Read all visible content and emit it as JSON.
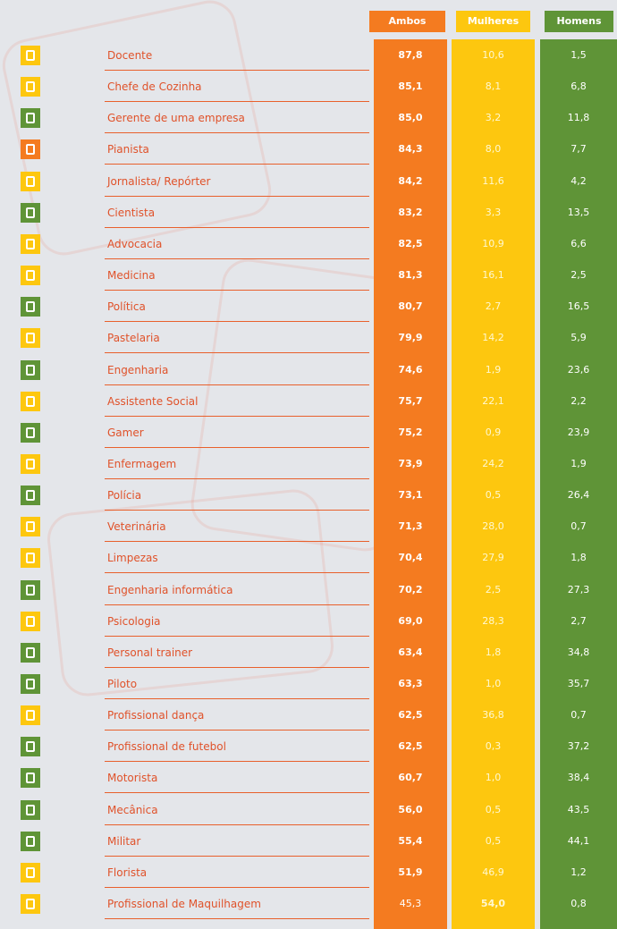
{
  "header": {
    "ambos": "Ambos",
    "mulheres": "Mulheres",
    "homens": "Homens"
  },
  "rows": [
    [
      "Docente",
      "87,8",
      "10,6",
      "1,5"
    ],
    [
      "Chefe de Cozinha",
      "85,1",
      "8,1",
      "6,8"
    ],
    [
      "Gerente de uma empresa",
      "85,0",
      "3,2",
      "11,8"
    ],
    [
      "Pianista",
      "84,3",
      "8,0",
      "7,7"
    ],
    [
      "Jornalista/ Repórter",
      "84,2",
      "11,6",
      "4,2"
    ],
    [
      "Cientista",
      "83,2",
      "3,3",
      "13,5"
    ],
    [
      "Advocacia",
      "82,5",
      "10,9",
      "6,6"
    ],
    [
      "Medicina",
      "81,3",
      "16,1",
      "2,5"
    ],
    [
      "Política",
      "80,7",
      "2,7",
      "16,5"
    ],
    [
      "Pastelaria",
      "79,9",
      "14,2",
      "5,9"
    ],
    [
      "Engenharia",
      "74,6",
      "1,9",
      "23,6"
    ],
    [
      "Assistente Social",
      "75,7",
      "22,1",
      "2,2"
    ],
    [
      "Gamer",
      "75,2",
      "0,9",
      "23,9"
    ],
    [
      "Enfermagem",
      "73,9",
      "24,2",
      "1,9"
    ],
    [
      "Polícia",
      "73,1",
      "0,5",
      "26,4"
    ],
    [
      "Veterinária",
      "71,3",
      "28,0",
      "0,7"
    ],
    [
      "Limpezas",
      "70,4",
      "27,9",
      "1,8"
    ],
    [
      "Engenharia informática",
      "70,2",
      "2,5",
      "27,3"
    ],
    [
      "Psicologia",
      "69,0",
      "28,3",
      "2,7"
    ],
    [
      "Personal trainer",
      "63,4",
      "1,8",
      "34,8"
    ],
    [
      "Piloto",
      "63,3",
      "1,0",
      "35,7"
    ],
    [
      "Profissional dança",
      "62,5",
      "36,8",
      "0,7"
    ],
    [
      "Profissional de futebol",
      "62,5",
      "0,3",
      "37,2"
    ],
    [
      "Motorista",
      "60,7",
      "1,0",
      "38,4"
    ],
    [
      "Mecânica",
      "56,0",
      "0,5",
      "43,5"
    ],
    [
      "Militar",
      "55,4",
      "0,5",
      "44,1"
    ],
    [
      "Florista",
      "51,9",
      "46,9",
      "1,2"
    ],
    [
      "Profissional de Maquilhagem",
      "45,3",
      "54,0",
      "0,8"
    ]
  ]
}
